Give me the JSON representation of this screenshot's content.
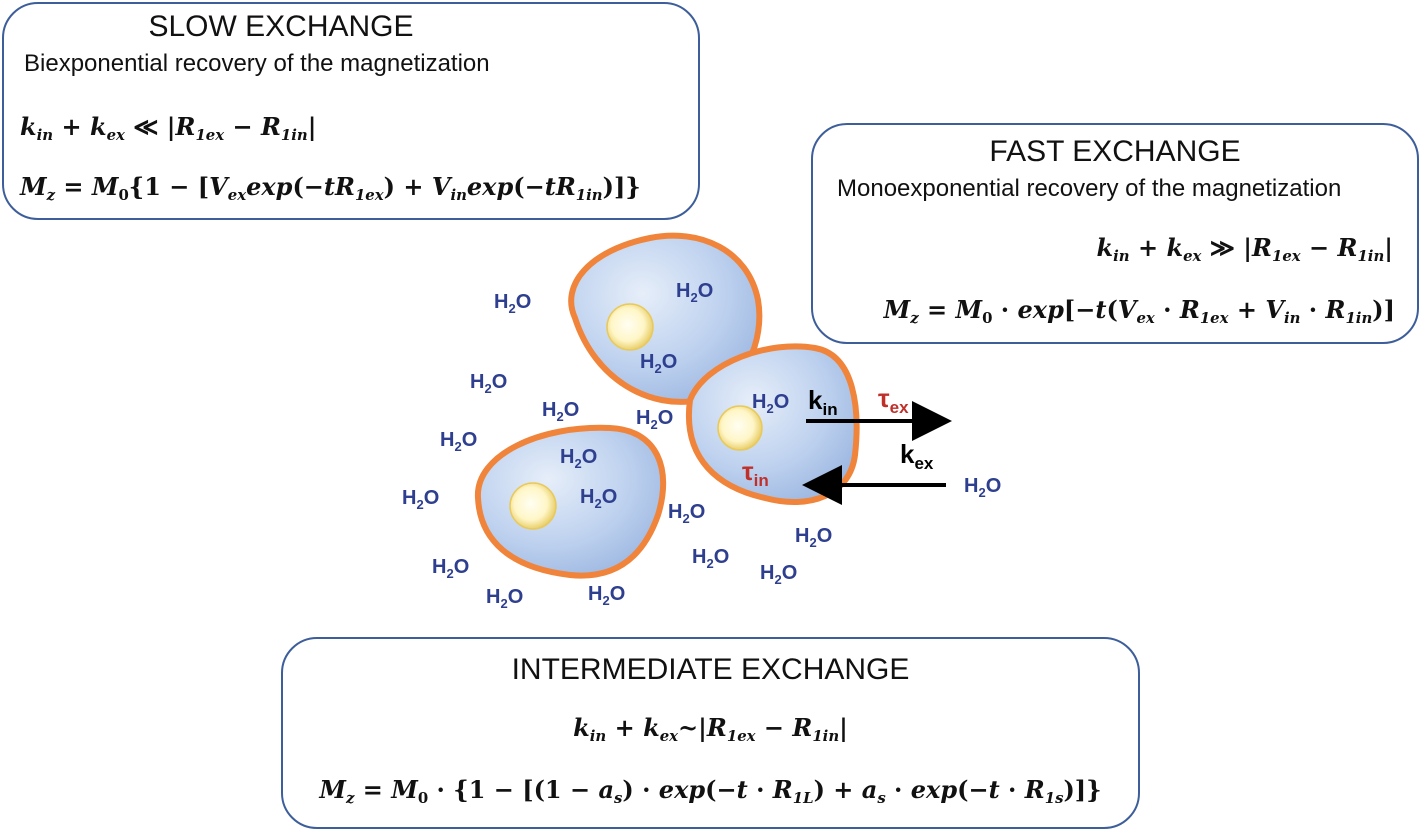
{
  "slow": {
    "title": "SLOW EXCHANGE",
    "subtitle": "Biexponential recovery of the magnetization",
    "condition": "k_in + k_ex ≪ |R_1ex − R_1in|",
    "equation": "M_z = M_0{1 − [V_ex exp(−tR_1ex) + V_in exp(−tR_1in)]}"
  },
  "fast": {
    "title": "FAST EXCHANGE",
    "subtitle": "Monoexponential recovery of the magnetization",
    "condition": "k_in + k_ex ≫ |R_1ex − R_1in|",
    "equation": "M_z = M_0 · exp[−t(V_ex · R_1ex + V_in · R_1in)]"
  },
  "intermediate": {
    "title": "INTERMEDIATE EXCHANGE",
    "condition": "k_in + k_ex ~ |R_1ex − R_1in|",
    "equation": "M_z = M_0 · {1 − [(1 − a_s) · exp(−t · R_1L) + a_s · exp(−t · R_1s)]}"
  },
  "diagram": {
    "water_label": "H",
    "water_sub": "2",
    "water_tail": "O",
    "k_in": "k",
    "k_in_sub": "in",
    "k_ex": "k",
    "k_ex_sub": "ex",
    "tau_ex": "τ",
    "tau_ex_sub": "ex",
    "tau_in": "τ",
    "tau_in_sub": "in"
  },
  "colors": {
    "box_border": "#3d5e9a",
    "cell_fill": "#a9c1e6",
    "cell_border": "#f0843a",
    "water": "#2f3f8f",
    "tau": "#c0302a",
    "arrow": "#000000"
  }
}
